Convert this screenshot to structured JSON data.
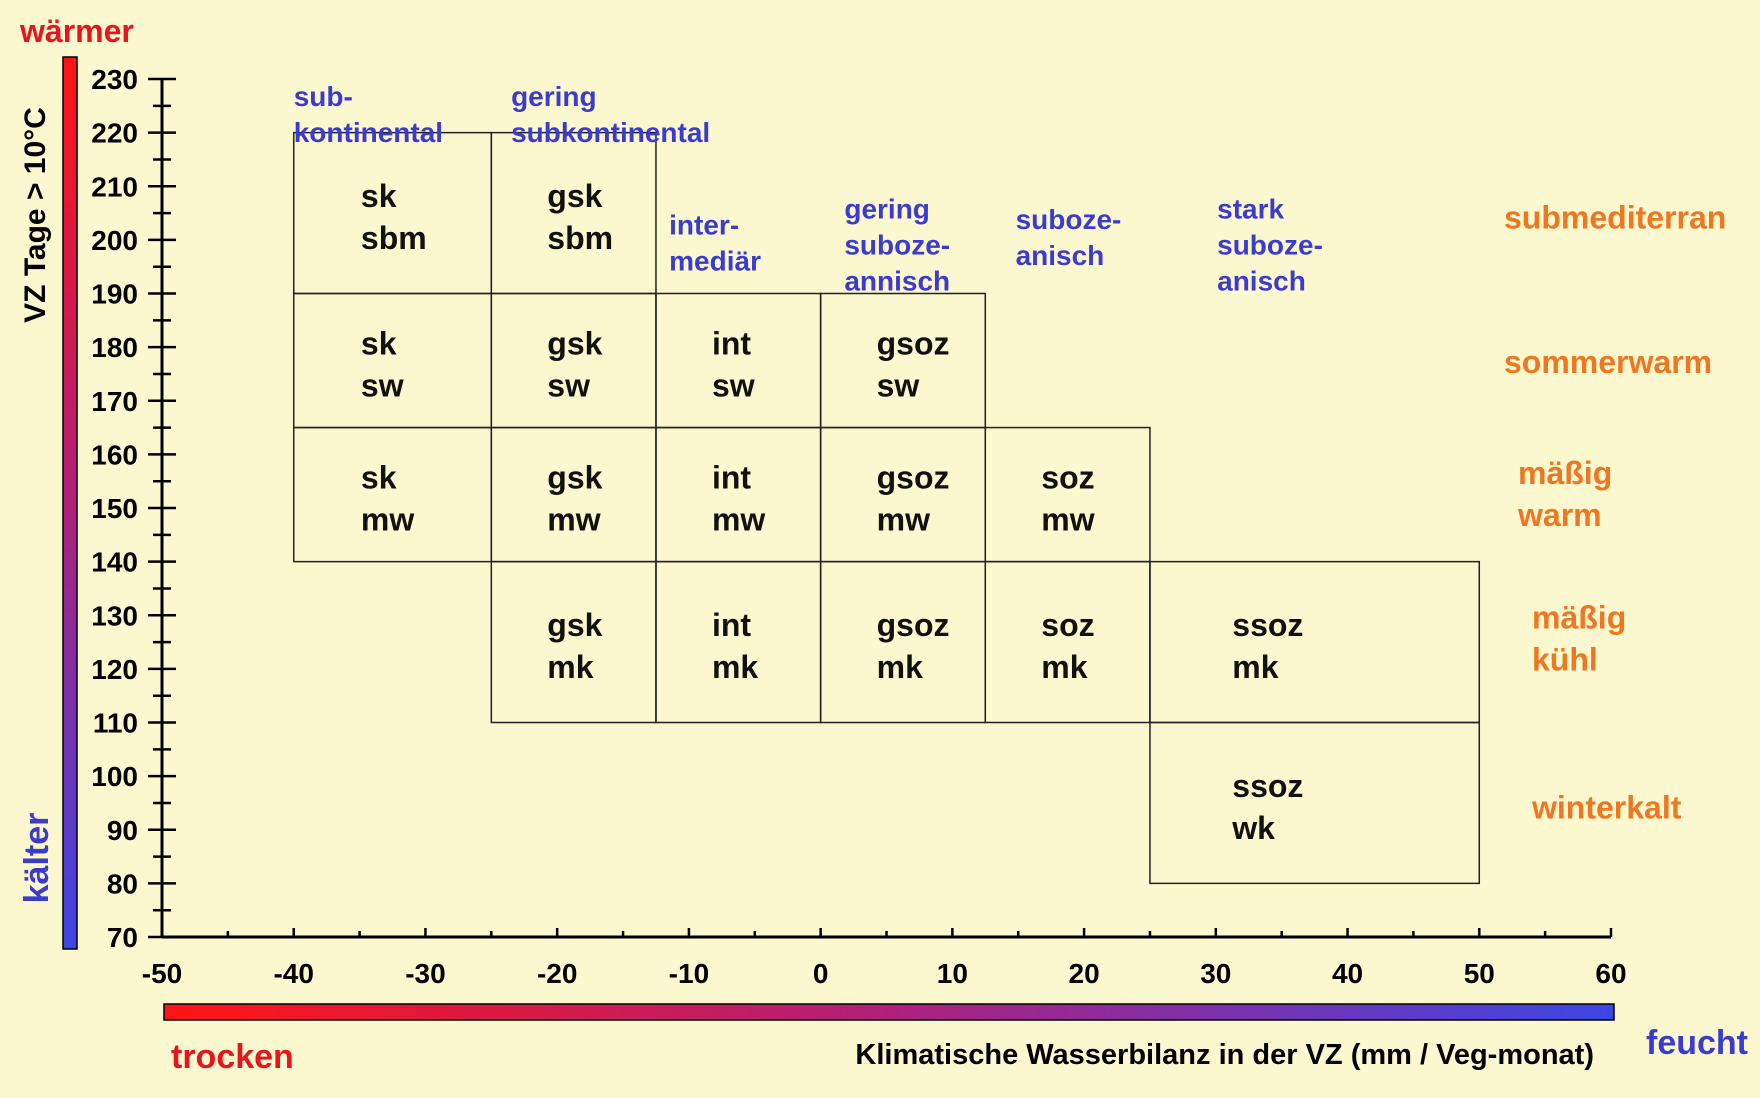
{
  "chart_data": {
    "type": "table",
    "xlabel": "Klimatische Wasserbilanz in der VZ  (mm / Veg-monat)",
    "ylabel": "VZ  Tage > 10°C",
    "xlim": [
      -50,
      60
    ],
    "ylim": [
      70,
      230
    ],
    "x_ticks": [
      -50,
      -40,
      -30,
      -20,
      -10,
      0,
      10,
      20,
      30,
      40,
      50,
      60
    ],
    "y_ticks": [
      70,
      80,
      90,
      100,
      110,
      120,
      130,
      140,
      150,
      160,
      170,
      180,
      190,
      200,
      210,
      220,
      230
    ],
    "x_minor_step": 5,
    "y_minor_step": 5,
    "x_ends": {
      "left": "trocken",
      "right": "feucht",
      "left_color": "#e8141e",
      "right_color": "#3b3bd0"
    },
    "y_ends": {
      "top": "wärmer",
      "bottom": "kälter",
      "top_color": "#e8141e",
      "bottom_color": "#3b3bd0"
    },
    "cells": [
      {
        "x": [
          -40,
          -25
        ],
        "y": [
          190,
          220
        ],
        "lines": [
          "sk",
          "sbm"
        ]
      },
      {
        "x": [
          -25,
          -12.5
        ],
        "y": [
          190,
          220
        ],
        "lines": [
          "gsk",
          "sbm"
        ]
      },
      {
        "x": [
          -40,
          -25
        ],
        "y": [
          165,
          190
        ],
        "lines": [
          "sk",
          "sw"
        ]
      },
      {
        "x": [
          -25,
          -12.5
        ],
        "y": [
          165,
          190
        ],
        "lines": [
          "gsk",
          "sw"
        ]
      },
      {
        "x": [
          -12.5,
          0
        ],
        "y": [
          165,
          190
        ],
        "lines": [
          "int",
          "sw"
        ]
      },
      {
        "x": [
          0,
          12.5
        ],
        "y": [
          165,
          190
        ],
        "lines": [
          "gsoz",
          "sw"
        ]
      },
      {
        "x": [
          -40,
          -25
        ],
        "y": [
          140,
          165
        ],
        "lines": [
          "sk",
          "mw"
        ]
      },
      {
        "x": [
          -25,
          -12.5
        ],
        "y": [
          140,
          165
        ],
        "lines": [
          "gsk",
          "mw"
        ]
      },
      {
        "x": [
          -12.5,
          0
        ],
        "y": [
          140,
          165
        ],
        "lines": [
          "int",
          "mw"
        ]
      },
      {
        "x": [
          0,
          12.5
        ],
        "y": [
          140,
          165
        ],
        "lines": [
          "gsoz",
          "mw"
        ]
      },
      {
        "x": [
          12.5,
          25
        ],
        "y": [
          140,
          165
        ],
        "lines": [
          "soz",
          "mw"
        ]
      },
      {
        "x": [
          -25,
          -12.5
        ],
        "y": [
          110,
          140
        ],
        "lines": [
          "gsk",
          "mk"
        ]
      },
      {
        "x": [
          -12.5,
          0
        ],
        "y": [
          110,
          140
        ],
        "lines": [
          "int",
          "mk"
        ]
      },
      {
        "x": [
          0,
          12.5
        ],
        "y": [
          110,
          140
        ],
        "lines": [
          "gsoz",
          "mk"
        ]
      },
      {
        "x": [
          12.5,
          25
        ],
        "y": [
          110,
          140
        ],
        "lines": [
          "soz",
          "mk"
        ]
      },
      {
        "x": [
          25,
          50
        ],
        "y": [
          110,
          140
        ],
        "lines": [
          "ssoz",
          "mk"
        ]
      },
      {
        "x": [
          25,
          50
        ],
        "y": [
          80,
          110
        ],
        "lines": [
          "ssoz",
          "wk"
        ]
      }
    ],
    "column_labels": [
      {
        "lines": [
          "sub-",
          "kontinental"
        ],
        "x": -40,
        "y": 225
      },
      {
        "lines": [
          "gering",
          "subkontinental"
        ],
        "x": -23.5,
        "y": 225
      },
      {
        "lines": [
          "inter-",
          "mediär"
        ],
        "x": -11.5,
        "y": 201
      },
      {
        "lines": [
          "gering",
          "suboze-",
          "annisch"
        ],
        "x": 1.8,
        "y": 204
      },
      {
        "lines": [
          "suboze-",
          "anisch"
        ],
        "x": 14.8,
        "y": 202
      },
      {
        "lines": [
          "stark",
          "suboze-",
          "anisch"
        ],
        "x": 30.1,
        "y": 204
      }
    ],
    "row_labels": [
      {
        "lines": [
          "submediterran"
        ],
        "y": 204
      },
      {
        "lines": [
          "sommerwarm"
        ],
        "y": 177
      },
      {
        "lines": [
          "mäßig",
          "warm"
        ],
        "y": 153
      },
      {
        "lines": [
          "mäßig",
          "kühl"
        ],
        "y": 126
      },
      {
        "lines": [
          "winterkalt"
        ],
        "y": 94
      }
    ],
    "colors": {
      "cell_text": "#111111",
      "column_label": "#3b3bd0",
      "row_label": "#ee7722",
      "axis": "#000000"
    }
  }
}
